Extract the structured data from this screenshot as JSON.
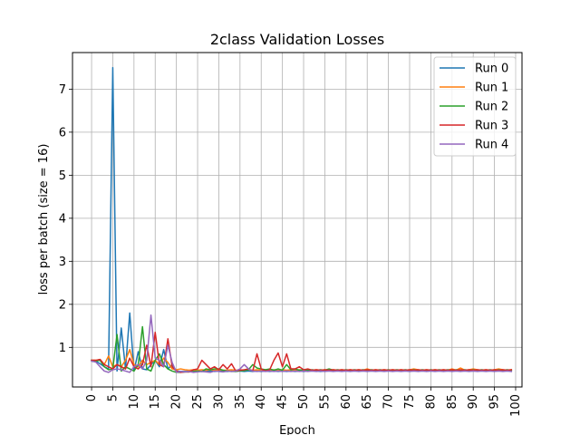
{
  "chart_data": {
    "type": "line",
    "title": "2class Validation Losses",
    "xlabel": "Epoch",
    "ylabel": "loss per batch (size = 16)",
    "xlim": [
      -4.5,
      101.5
    ],
    "ylim": [
      0.08,
      7.85
    ],
    "xticks": [
      0,
      5,
      10,
      15,
      20,
      25,
      30,
      35,
      40,
      45,
      50,
      55,
      60,
      65,
      70,
      75,
      80,
      85,
      90,
      95,
      100
    ],
    "yticks": [
      1,
      2,
      3,
      4,
      5,
      6,
      7
    ],
    "grid": true,
    "legend_position": "top-right",
    "series": [
      {
        "name": "Run 0",
        "color": "#1f77b4",
        "values": [
          0.7,
          0.68,
          0.62,
          0.55,
          0.5,
          7.5,
          0.45,
          1.45,
          0.5,
          1.8,
          0.45,
          0.9,
          0.5,
          0.48,
          0.6,
          0.7,
          0.55,
          0.95,
          0.5,
          0.6,
          0.45,
          0.44,
          0.44,
          0.44,
          0.44,
          0.45,
          0.44,
          0.44,
          0.45,
          0.44,
          0.45,
          0.44,
          0.44,
          0.45,
          0.44,
          0.45,
          0.44,
          0.45,
          0.44,
          0.45,
          0.44,
          0.45,
          0.44,
          0.45,
          0.44,
          0.45,
          0.44,
          0.45,
          0.44,
          0.45,
          0.44,
          0.45,
          0.45,
          0.45,
          0.44,
          0.45,
          0.45,
          0.45,
          0.45,
          0.45,
          0.45,
          0.45,
          0.45,
          0.45,
          0.45,
          0.45,
          0.45,
          0.45,
          0.45,
          0.45,
          0.45,
          0.45,
          0.45,
          0.45,
          0.45,
          0.45,
          0.45,
          0.45,
          0.45,
          0.45,
          0.45,
          0.45,
          0.45,
          0.45,
          0.45,
          0.45,
          0.45,
          0.45,
          0.45,
          0.45,
          0.45,
          0.45,
          0.45,
          0.45,
          0.45,
          0.45,
          0.45,
          0.45,
          0.45,
          0.45
        ]
      },
      {
        "name": "Run 1",
        "color": "#ff7f0e",
        "values": [
          0.7,
          0.7,
          0.72,
          0.6,
          0.8,
          0.55,
          0.6,
          0.55,
          0.7,
          0.95,
          0.6,
          0.55,
          0.7,
          0.6,
          0.65,
          0.7,
          0.6,
          0.75,
          0.65,
          0.5,
          0.48,
          0.5,
          0.48,
          0.47,
          0.48,
          0.47,
          0.48,
          0.47,
          0.48,
          0.47,
          0.48,
          0.47,
          0.47,
          0.48,
          0.47,
          0.48,
          0.47,
          0.48,
          0.47,
          0.48,
          0.47,
          0.48,
          0.47,
          0.48,
          0.47,
          0.48,
          0.47,
          0.48,
          0.47,
          0.48,
          0.47,
          0.48,
          0.47,
          0.48,
          0.47,
          0.48,
          0.47,
          0.48,
          0.47,
          0.48,
          0.47,
          0.48,
          0.47,
          0.48,
          0.47,
          0.5,
          0.47,
          0.48,
          0.47,
          0.48,
          0.47,
          0.48,
          0.47,
          0.48,
          0.47,
          0.48,
          0.5,
          0.48,
          0.47,
          0.48,
          0.47,
          0.48,
          0.47,
          0.48,
          0.47,
          0.5,
          0.47,
          0.52,
          0.47,
          0.48,
          0.5,
          0.48,
          0.47,
          0.48,
          0.47,
          0.48,
          0.5,
          0.48,
          0.47,
          0.48
        ]
      },
      {
        "name": "Run 2",
        "color": "#2ca02c",
        "values": [
          0.7,
          0.68,
          0.7,
          0.55,
          0.48,
          0.5,
          1.3,
          0.45,
          0.55,
          0.5,
          0.45,
          0.6,
          1.48,
          0.5,
          0.45,
          0.7,
          0.85,
          0.6,
          0.5,
          0.45,
          0.42,
          0.42,
          0.43,
          0.43,
          0.44,
          0.45,
          0.44,
          0.5,
          0.48,
          0.5,
          0.5,
          0.47,
          0.45,
          0.44,
          0.44,
          0.46,
          0.46,
          0.48,
          0.6,
          0.52,
          0.5,
          0.48,
          0.5,
          0.47,
          0.5,
          0.47,
          0.6,
          0.48,
          0.5,
          0.47,
          0.48,
          0.47,
          0.48,
          0.47,
          0.48,
          0.47,
          0.5,
          0.47,
          0.48,
          0.47,
          0.48,
          0.47,
          0.48,
          0.47,
          0.48,
          0.47,
          0.48,
          0.47,
          0.48,
          0.47,
          0.48,
          0.47,
          0.48,
          0.47,
          0.48,
          0.47,
          0.48,
          0.47,
          0.48,
          0.47,
          0.48,
          0.47,
          0.48,
          0.47,
          0.48,
          0.47,
          0.48,
          0.47,
          0.48,
          0.47,
          0.48,
          0.47,
          0.48,
          0.47,
          0.48,
          0.47,
          0.48,
          0.47,
          0.48,
          0.47
        ]
      },
      {
        "name": "Run 3",
        "color": "#d62728",
        "values": [
          0.7,
          0.7,
          0.72,
          0.6,
          0.55,
          0.5,
          0.6,
          0.55,
          0.5,
          0.75,
          0.55,
          0.5,
          0.6,
          1.05,
          0.55,
          1.35,
          0.6,
          0.55,
          1.2,
          0.55,
          0.45,
          0.42,
          0.43,
          0.43,
          0.48,
          0.5,
          0.7,
          0.6,
          0.5,
          0.55,
          0.48,
          0.6,
          0.5,
          0.62,
          0.45,
          0.47,
          0.48,
          0.5,
          0.45,
          0.85,
          0.5,
          0.45,
          0.48,
          0.7,
          0.87,
          0.55,
          0.85,
          0.5,
          0.5,
          0.55,
          0.48,
          0.5,
          0.47,
          0.48,
          0.47,
          0.48,
          0.47,
          0.48,
          0.47,
          0.48,
          0.47,
          0.48,
          0.47,
          0.48,
          0.47,
          0.48,
          0.47,
          0.48,
          0.47,
          0.48,
          0.47,
          0.48,
          0.47,
          0.48,
          0.47,
          0.48,
          0.47,
          0.48,
          0.47,
          0.48,
          0.47,
          0.48,
          0.47,
          0.48,
          0.47,
          0.48,
          0.47,
          0.48,
          0.47,
          0.48,
          0.47,
          0.48,
          0.47,
          0.48,
          0.47,
          0.48,
          0.47,
          0.48,
          0.47,
          0.48
        ]
      },
      {
        "name": "Run 4",
        "color": "#9467bd",
        "values": [
          0.68,
          0.66,
          0.55,
          0.45,
          0.42,
          0.48,
          0.5,
          0.48,
          0.45,
          0.42,
          0.55,
          0.6,
          0.5,
          0.7,
          1.75,
          0.75,
          0.7,
          0.55,
          1.05,
          0.65,
          0.42,
          0.44,
          0.43,
          0.44,
          0.42,
          0.43,
          0.44,
          0.43,
          0.42,
          0.45,
          0.44,
          0.43,
          0.45,
          0.44,
          0.45,
          0.5,
          0.6,
          0.5,
          0.45,
          0.44,
          0.45,
          0.44,
          0.45,
          0.44,
          0.45,
          0.44,
          0.45,
          0.44,
          0.45,
          0.44,
          0.45,
          0.44,
          0.45,
          0.44,
          0.45,
          0.44,
          0.45,
          0.44,
          0.45,
          0.44,
          0.45,
          0.44,
          0.45,
          0.44,
          0.45,
          0.44,
          0.45,
          0.44,
          0.45,
          0.44,
          0.45,
          0.44,
          0.45,
          0.44,
          0.45,
          0.44,
          0.45,
          0.44,
          0.45,
          0.44,
          0.45,
          0.44,
          0.45,
          0.44,
          0.45,
          0.44,
          0.45,
          0.44,
          0.45,
          0.44,
          0.45,
          0.44,
          0.45,
          0.44,
          0.45,
          0.44,
          0.45,
          0.44,
          0.45,
          0.44
        ]
      }
    ]
  }
}
